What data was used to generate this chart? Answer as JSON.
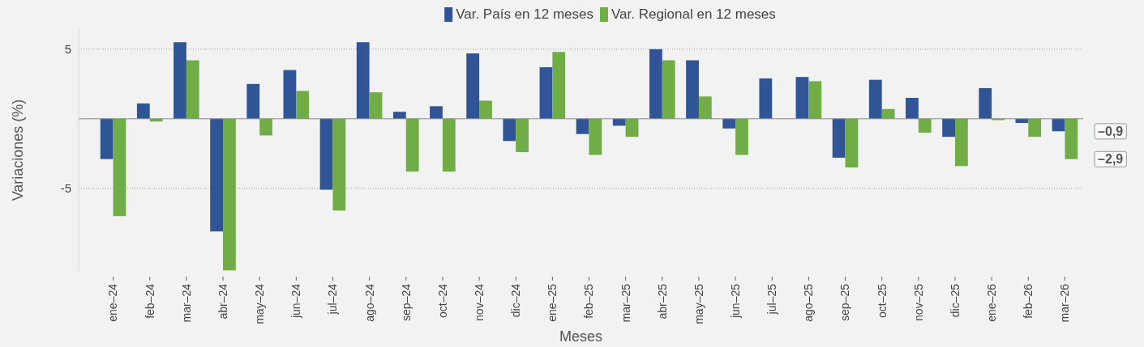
{
  "chart_data": {
    "type": "bar",
    "xlabel": "Meses",
    "ylabel": "Variaciones (%)",
    "categories": [
      "ene–24",
      "feb–24",
      "mar–24",
      "abr–24",
      "may–24",
      "jun–24",
      "jul–24",
      "ago–24",
      "sep–24",
      "oct–24",
      "nov–24",
      "dic–24",
      "ene–25",
      "feb–25",
      "mar–25",
      "abr–25",
      "may–25",
      "jun–25",
      "jul–25",
      "ago–25",
      "sep–25",
      "oct–25",
      "nov–25",
      "dic–25",
      "ene–26",
      "feb–26",
      "mar–26"
    ],
    "series": [
      {
        "name": "Var. País en 12 meses",
        "color": "#2f5597",
        "values": [
          -2.9,
          1.1,
          5.5,
          -8.1,
          2.5,
          3.5,
          -5.1,
          5.5,
          0.5,
          0.9,
          4.7,
          -1.6,
          3.7,
          -1.1,
          -0.5,
          5.0,
          4.2,
          -0.7,
          2.9,
          3.0,
          -2.8,
          2.8,
          1.5,
          -1.3,
          2.2,
          -0.3,
          -0.9
        ]
      },
      {
        "name": "Var. Regional en 12 meses",
        "color": "#70ad47",
        "values": [
          -7.0,
          -0.2,
          4.2,
          -10.9,
          -1.2,
          2.0,
          -6.6,
          1.9,
          -3.8,
          -3.8,
          1.3,
          -2.4,
          4.8,
          -2.6,
          -1.3,
          4.2,
          1.6,
          -2.6,
          null,
          2.7,
          -3.5,
          0.7,
          -1.0,
          -3.4,
          -0.1,
          -1.3,
          -2.9
        ]
      }
    ],
    "ylim": [
      -11,
      6.5
    ],
    "yticks": [
      -5,
      5
    ],
    "grid": "y",
    "legend": "top",
    "annotations": [
      {
        "text": "–0,9",
        "x": "mar–26",
        "y": -0.9
      },
      {
        "text": "–2,9",
        "x": "mar–26",
        "y": -2.9
      }
    ]
  }
}
